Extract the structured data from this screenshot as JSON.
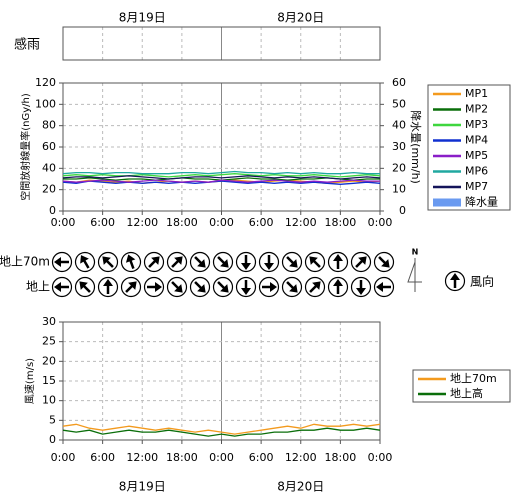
{
  "chart_data": [
    {
      "type": "line",
      "rain_sense_label": "感雨",
      "dates": [
        {
          "value": 12,
          "label": "8月19日"
        },
        {
          "value": 36,
          "label": "8月20日"
        }
      ],
      "ylabel": "空間放射線量率(nGy/h)",
      "y2label": "降水量(mm/h)",
      "x": [
        0,
        2,
        4,
        6,
        8,
        10,
        12,
        14,
        16,
        18,
        20,
        22,
        24,
        26,
        28,
        30,
        32,
        34,
        36,
        38,
        40,
        42,
        44,
        46,
        48
      ],
      "xlim": [
        0,
        48
      ],
      "xticks": [
        {
          "value": 0,
          "label": "0:00"
        },
        {
          "value": 6,
          "label": "6:00"
        },
        {
          "value": 12,
          "label": "12:00"
        },
        {
          "value": 18,
          "label": "18:00"
        },
        {
          "value": 24,
          "label": "0:00"
        },
        {
          "value": 30,
          "label": "6:00"
        },
        {
          "value": 36,
          "label": "12:00"
        },
        {
          "value": 42,
          "label": "18:00"
        },
        {
          "value": 48,
          "label": "0:00"
        }
      ],
      "ylim": [
        0,
        120
      ],
      "yticks": [
        0,
        20,
        40,
        60,
        80,
        100,
        120
      ],
      "y2lim": [
        0,
        60
      ],
      "y2ticks": [
        0,
        10,
        20,
        30,
        40,
        50,
        60
      ],
      "grid": true,
      "series": [
        {
          "name": "MP1",
          "color": "#f39a1e",
          "values": [
            28,
            27,
            29,
            28,
            27,
            28,
            26,
            27,
            28,
            27,
            28,
            27,
            28,
            29,
            28,
            27,
            28,
            29,
            28,
            27,
            26,
            27,
            28,
            27,
            28
          ]
        },
        {
          "name": "MP2",
          "color": "#0a6e0a",
          "values": [
            30,
            30,
            31,
            30,
            29,
            30,
            30,
            29,
            30,
            31,
            30,
            30,
            29,
            30,
            31,
            30,
            30,
            29,
            30,
            30,
            31,
            30,
            29,
            30,
            30
          ]
        },
        {
          "name": "MP3",
          "color": "#3ed63e",
          "values": [
            33,
            34,
            33,
            34,
            33,
            33,
            34,
            33,
            32,
            33,
            34,
            33,
            34,
            35,
            34,
            33,
            34,
            33,
            33,
            34,
            33,
            32,
            33,
            34,
            33
          ]
        },
        {
          "name": "MP4",
          "color": "#1030d0",
          "values": [
            27,
            26,
            28,
            27,
            26,
            27,
            26,
            27,
            26,
            27,
            26,
            27,
            28,
            27,
            26,
            27,
            26,
            27,
            26,
            27,
            26,
            25,
            26,
            27,
            26
          ]
        },
        {
          "name": "MP5",
          "color": "#8a1ec8",
          "values": [
            28,
            27,
            28,
            29,
            28,
            27,
            28,
            29,
            28,
            27,
            28,
            27,
            29,
            28,
            27,
            28,
            29,
            28,
            27,
            28,
            27,
            28,
            29,
            28,
            28
          ]
        },
        {
          "name": "MP6",
          "color": "#20a8a0",
          "values": [
            35,
            36,
            36,
            35,
            36,
            36,
            35,
            35,
            35,
            36,
            36,
            35,
            36,
            37,
            36,
            36,
            35,
            36,
            35,
            36,
            35,
            35,
            36,
            35,
            35
          ]
        },
        {
          "name": "MP7",
          "color": "#14145a",
          "values": [
            31,
            32,
            32,
            31,
            32,
            33,
            32,
            31,
            30,
            31,
            32,
            32,
            31,
            32,
            33,
            32,
            31,
            32,
            31,
            32,
            31,
            30,
            31,
            32,
            31
          ]
        },
        {
          "name": "降水量",
          "color": "#6a9af0",
          "type": "bar",
          "axis": "y2",
          "values": [
            0,
            0,
            0,
            0,
            0,
            0,
            0,
            0,
            0,
            0,
            0,
            0,
            0,
            0,
            0,
            0,
            0,
            0,
            0,
            0,
            0,
            0,
            0,
            0,
            0
          ]
        }
      ]
    },
    {
      "type": "wind",
      "compass_label": "N",
      "legend_label": "風向",
      "rows": [
        {
          "name": "地上70m",
          "directions": [
            270,
            330,
            315,
            340,
            45,
            45,
            135,
            135,
            180,
            180,
            135,
            315,
            0,
            45,
            135
          ]
        },
        {
          "name": "地上",
          "directions": [
            270,
            315,
            0,
            45,
            90,
            135,
            135,
            135,
            180,
            90,
            135,
            45,
            0,
            180,
            270
          ]
        }
      ]
    },
    {
      "type": "line",
      "ylabel": "風速(m/s)",
      "x": [
        0,
        2,
        4,
        6,
        8,
        10,
        12,
        14,
        16,
        18,
        20,
        22,
        24,
        26,
        28,
        30,
        32,
        34,
        36,
        38,
        40,
        42,
        44,
        46,
        48
      ],
      "xlim": [
        0,
        48
      ],
      "xticks": [
        {
          "value": 0,
          "label": "0:00"
        },
        {
          "value": 6,
          "label": "6:00"
        },
        {
          "value": 12,
          "label": "12:00"
        },
        {
          "value": 18,
          "label": "18:00"
        },
        {
          "value": 24,
          "label": "0:00"
        },
        {
          "value": 30,
          "label": "6:00"
        },
        {
          "value": 36,
          "label": "12:00"
        },
        {
          "value": 42,
          "label": "18:00"
        },
        {
          "value": 48,
          "label": "0:00"
        }
      ],
      "ylim": [
        0,
        30
      ],
      "yticks": [
        0,
        5,
        10,
        15,
        20,
        25,
        30
      ],
      "grid": true,
      "series": [
        {
          "name": "地上70m",
          "color": "#f39a1e",
          "values": [
            3.5,
            4,
            3,
            2.5,
            3,
            3.5,
            3,
            2.5,
            3,
            2.5,
            2,
            2.5,
            2,
            1.5,
            2,
            2.5,
            3,
            3.5,
            3,
            4,
            3.5,
            3.5,
            4,
            3.5,
            4
          ]
        },
        {
          "name": "地上高",
          "color": "#0a6e0a",
          "values": [
            2.5,
            2,
            2.5,
            1.5,
            2,
            2.5,
            2,
            2,
            2.5,
            2,
            1.5,
            1,
            1.5,
            1,
            1.5,
            1.5,
            2,
            2,
            2.5,
            2.5,
            3,
            2.5,
            2.5,
            3,
            2.5
          ]
        }
      ]
    }
  ]
}
